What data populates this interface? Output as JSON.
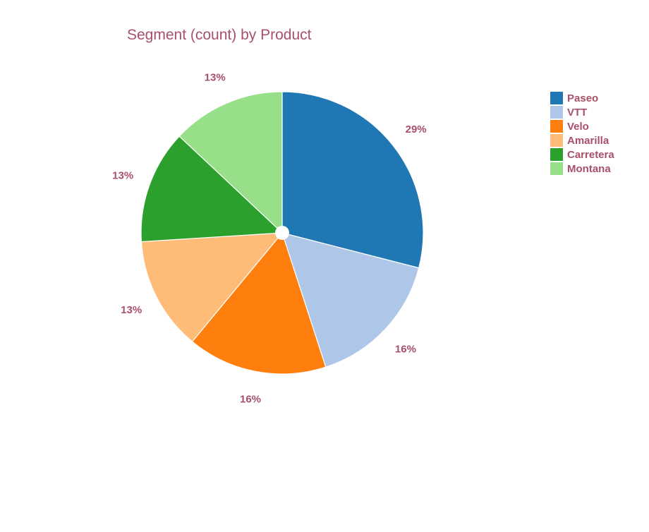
{
  "chart_data": {
    "type": "pie",
    "title": "Segment (count) by Product",
    "slices": [
      {
        "label": "Paseo",
        "percent": 29,
        "display": "29%",
        "color": "#1f77b4"
      },
      {
        "label": "VTT",
        "percent": 16,
        "display": "16%",
        "color": "#aec7e8"
      },
      {
        "label": "Velo",
        "percent": 16,
        "display": "16%",
        "color": "#ff7f0e"
      },
      {
        "label": "Amarilla",
        "percent": 13,
        "display": "13%",
        "color": "#ffbb78"
      },
      {
        "label": "Carretera",
        "percent": 13,
        "display": "13%",
        "color": "#2ca02c"
      },
      {
        "label": "Montana",
        "percent": 13,
        "display": "13%",
        "color": "#98df8a"
      }
    ],
    "direction": "clockwise",
    "legend_position": "top-right",
    "text_color": "#a8506a"
  }
}
